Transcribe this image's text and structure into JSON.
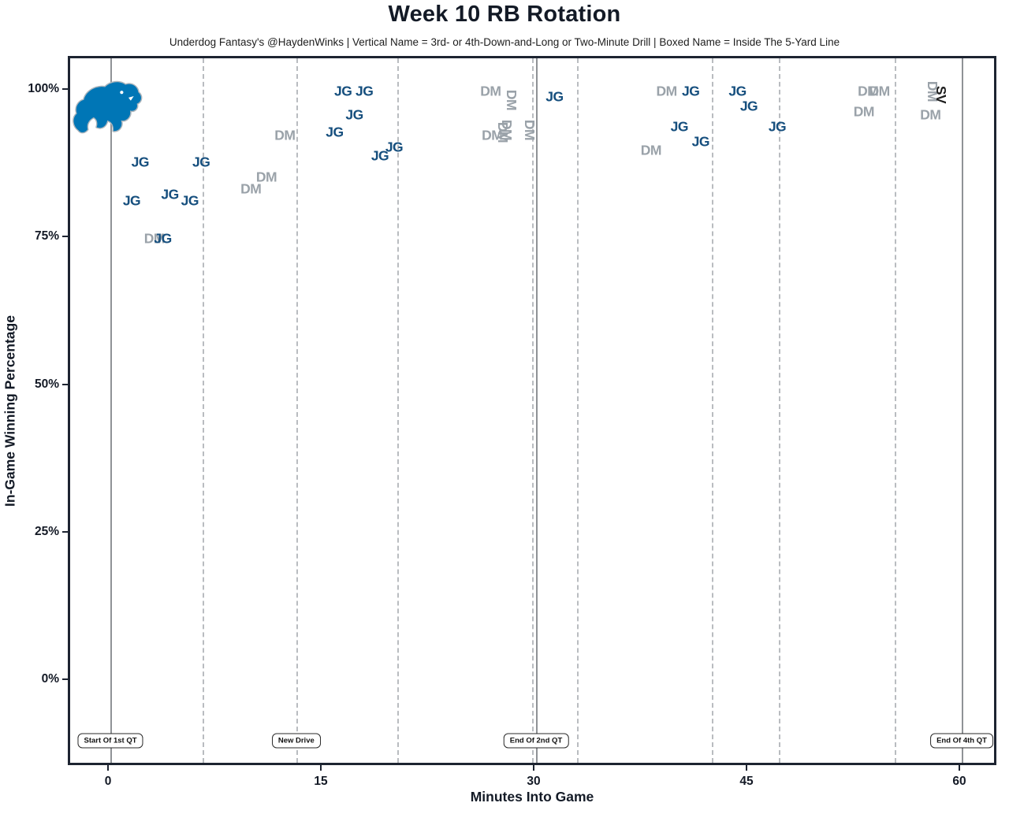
{
  "page": {
    "title": "Week 10 RB Rotation",
    "subtitle": "Underdog Fantasy's @HaydenWinks | Vertical Name = 3rd- or 4th-Down-and-Long or Two-Minute Drill | Boxed Name = Inside The 5-Yard Line"
  },
  "team_logo": "detroit-lions-logo",
  "colors": {
    "jg": "#164f7e",
    "dm": "#9aa2a9",
    "sv": "#1c1c1c",
    "dashed_drive_line": "#b9bcc0",
    "solid_event_line": "#8f9296",
    "plot_border": "#1d2431",
    "logo_blue": "#0076b6",
    "logo_silver": "#adb6bd"
  },
  "chart_data": {
    "type": "scatter",
    "title": "Week 10 RB Rotation",
    "xlabel": "Minutes Into Game",
    "ylabel": "In-Game Winning Percentage",
    "x_ticks": [
      0,
      15,
      30,
      45,
      60
    ],
    "x_tick_labels": [
      "0",
      "15",
      "30",
      "45",
      "60"
    ],
    "y_ticks": [
      0,
      25,
      50,
      75,
      100
    ],
    "y_tick_labels": [
      "0%",
      "25%",
      "50%",
      "75%",
      "100%"
    ],
    "xlim": [
      -2.8,
      62.6
    ],
    "ylim": [
      -14.5,
      105.5
    ],
    "grid": "vertical-drive-lines-only",
    "legend_position": "none",
    "players": [
      {
        "code": "JG",
        "color": "#164f7e",
        "zorder": 2
      },
      {
        "code": "DM",
        "color": "#9aa2a9",
        "zorder": 1
      },
      {
        "code": "SV",
        "color": "#1c1c1c",
        "zorder": 3
      }
    ],
    "points": [
      {
        "player": "JG",
        "min": 1.5,
        "win_pct": 81.5,
        "vertical": false
      },
      {
        "player": "JG",
        "min": 2.1,
        "win_pct": 88,
        "vertical": false
      },
      {
        "player": "JG",
        "min": 3.7,
        "win_pct": 75,
        "vertical": false
      },
      {
        "player": "JG",
        "min": 4.2,
        "win_pct": 82.5,
        "vertical": false
      },
      {
        "player": "JG",
        "min": 5.6,
        "win_pct": 81.5,
        "vertical": false
      },
      {
        "player": "JG",
        "min": 6.4,
        "win_pct": 88,
        "vertical": false
      },
      {
        "player": "JG",
        "min": 15.8,
        "win_pct": 93,
        "vertical": false
      },
      {
        "player": "JG",
        "min": 16.4,
        "win_pct": 100,
        "vertical": false
      },
      {
        "player": "JG",
        "min": 17.2,
        "win_pct": 96,
        "vertical": false
      },
      {
        "player": "JG",
        "min": 17.9,
        "win_pct": 100,
        "vertical": false
      },
      {
        "player": "JG",
        "min": 19.0,
        "win_pct": 89,
        "vertical": false
      },
      {
        "player": "JG",
        "min": 20.0,
        "win_pct": 90.5,
        "vertical": false
      },
      {
        "player": "JG",
        "min": 31.3,
        "win_pct": 99,
        "vertical": false
      },
      {
        "player": "JG",
        "min": 40.1,
        "win_pct": 94,
        "vertical": false
      },
      {
        "player": "JG",
        "min": 40.9,
        "win_pct": 100,
        "vertical": false
      },
      {
        "player": "JG",
        "min": 41.6,
        "win_pct": 91.5,
        "vertical": false
      },
      {
        "player": "JG",
        "min": 44.2,
        "win_pct": 100,
        "vertical": false
      },
      {
        "player": "JG",
        "min": 45.0,
        "win_pct": 97.5,
        "vertical": false
      },
      {
        "player": "JG",
        "min": 47.0,
        "win_pct": 94,
        "vertical": false
      },
      {
        "player": "DM",
        "min": 3.1,
        "win_pct": 75,
        "vertical": false
      },
      {
        "player": "DM",
        "min": 9.9,
        "win_pct": 83.5,
        "vertical": false
      },
      {
        "player": "DM",
        "min": 11.0,
        "win_pct": 85.5,
        "vertical": false
      },
      {
        "player": "DM",
        "min": 12.3,
        "win_pct": 92.5,
        "vertical": false
      },
      {
        "player": "DM",
        "min": 26.8,
        "win_pct": 100,
        "vertical": false
      },
      {
        "player": "DM",
        "min": 26.9,
        "win_pct": 92.5,
        "vertical": false
      },
      {
        "player": "DM",
        "min": 27.6,
        "win_pct": 93,
        "vertical": true
      },
      {
        "player": "DM",
        "min": 27.9,
        "win_pct": 93.5,
        "vertical": true
      },
      {
        "player": "DM",
        "min": 28.2,
        "win_pct": 98.5,
        "vertical": true
      },
      {
        "player": "DM",
        "min": 29.5,
        "win_pct": 93.5,
        "vertical": true
      },
      {
        "player": "DM",
        "min": 38.1,
        "win_pct": 90,
        "vertical": false
      },
      {
        "player": "DM",
        "min": 39.2,
        "win_pct": 100,
        "vertical": false
      },
      {
        "player": "DM",
        "min": 53.1,
        "win_pct": 96.5,
        "vertical": false
      },
      {
        "player": "DM",
        "min": 53.4,
        "win_pct": 100,
        "vertical": false
      },
      {
        "player": "DM",
        "min": 54.2,
        "win_pct": 100,
        "vertical": false
      },
      {
        "player": "DM",
        "min": 57.8,
        "win_pct": 96,
        "vertical": false
      },
      {
        "player": "DM",
        "min": 57.9,
        "win_pct": 100,
        "vertical": true
      },
      {
        "player": "SV",
        "min": 58.5,
        "win_pct": 99.5,
        "vertical": true
      }
    ],
    "new_drive_lines_min": [
      6.5,
      13.1,
      20.2,
      29.7,
      32.9,
      42.4,
      47.1,
      55.3
    ],
    "event_lines_min": [
      0,
      30,
      60
    ],
    "annotations": [
      {
        "min": 0,
        "label": "Start Of 1st QT"
      },
      {
        "min": 13.1,
        "label": "New Drive"
      },
      {
        "min": 30,
        "label": "End Of 2nd QT"
      },
      {
        "min": 60,
        "label": "End Of 4th QT"
      }
    ]
  }
}
